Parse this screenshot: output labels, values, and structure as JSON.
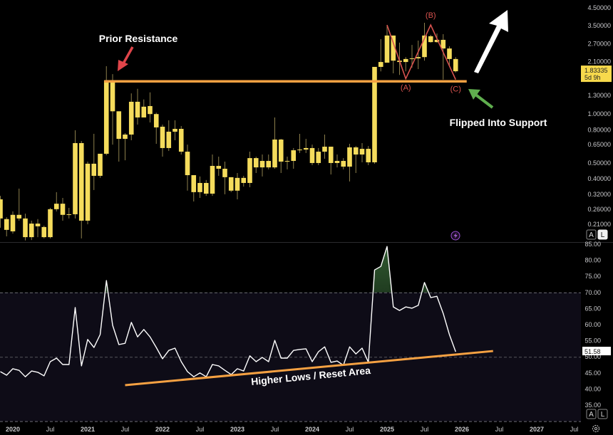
{
  "chart_data": [
    {
      "type": "candlestick",
      "interval": "1M",
      "y_scale": "log",
      "ylim": [
        0.165,
        4.6
      ],
      "candle_color": "#f5dc5c",
      "wick_color": "#8c7f4c",
      "y_ticks": [
        "4.50000",
        "3.50000",
        "2.70000",
        "2.10000",
        "1.30000",
        "1.00000",
        "0.80000",
        "0.65000",
        "0.50000",
        "0.40000",
        "0.32000",
        "0.26000",
        "0.21000"
      ],
      "last_price": {
        "value": "1.83335",
        "countdown": "5d 9h",
        "color": "#f7d94c"
      },
      "candles": [
        [
          "2019-11",
          0.299,
          0.314,
          0.2,
          0.228
        ],
        [
          "2019-12",
          0.226,
          0.232,
          0.177,
          0.194
        ],
        [
          "2020-01",
          0.19,
          0.252,
          0.184,
          0.24
        ],
        [
          "2020-02",
          0.24,
          0.348,
          0.221,
          0.228
        ],
        [
          "2020-03",
          0.228,
          0.244,
          0.167,
          0.175
        ],
        [
          "2020-04",
          0.175,
          0.221,
          0.168,
          0.212
        ],
        [
          "2020-05",
          0.212,
          0.226,
          0.175,
          0.204
        ],
        [
          "2020-06",
          0.202,
          0.206,
          0.172,
          0.175
        ],
        [
          "2020-07",
          0.175,
          0.265,
          0.172,
          0.26
        ],
        [
          "2020-08",
          0.26,
          0.331,
          0.252,
          0.281
        ],
        [
          "2020-09",
          0.281,
          0.305,
          0.221,
          0.24
        ],
        [
          "2020-10",
          0.24,
          0.265,
          0.228,
          0.242
        ],
        [
          "2020-11",
          0.242,
          0.795,
          0.228,
          0.663
        ],
        [
          "2020-12",
          0.663,
          0.683,
          0.172,
          0.221
        ],
        [
          "2021-01",
          0.221,
          0.51,
          0.21,
          0.495
        ],
        [
          "2021-02",
          0.495,
          0.756,
          0.341,
          0.417
        ],
        [
          "2021-03",
          0.417,
          0.57,
          0.405,
          0.57
        ],
        [
          "2021-04",
          0.57,
          1.97,
          0.558,
          1.61
        ],
        [
          "2021-05",
          1.61,
          1.76,
          0.649,
          1.04
        ],
        [
          "2021-06",
          1.04,
          1.04,
          0.51,
          0.704
        ],
        [
          "2021-07",
          0.704,
          0.763,
          0.52,
          0.748
        ],
        [
          "2021-08",
          0.748,
          1.34,
          0.69,
          1.19
        ],
        [
          "2021-09",
          1.19,
          1.43,
          0.861,
          0.953
        ],
        [
          "2021-10",
          0.953,
          1.23,
          0.953,
          1.11
        ],
        [
          "2021-11",
          1.12,
          1.36,
          0.888,
          1.0
        ],
        [
          "2021-12",
          1.0,
          1.02,
          0.656,
          0.828
        ],
        [
          "2022-01",
          0.836,
          0.861,
          0.547,
          0.618
        ],
        [
          "2022-02",
          0.618,
          0.915,
          0.593,
          0.779
        ],
        [
          "2022-03",
          0.779,
          0.915,
          0.69,
          0.811
        ],
        [
          "2022-04",
          0.811,
          0.844,
          0.564,
          0.587
        ],
        [
          "2022-05",
          0.587,
          0.649,
          0.338,
          0.421
        ],
        [
          "2022-06",
          0.421,
          0.421,
          0.29,
          0.331
        ],
        [
          "2022-07",
          0.331,
          0.413,
          0.305,
          0.377
        ],
        [
          "2022-08",
          0.377,
          0.393,
          0.314,
          0.324
        ],
        [
          "2022-09",
          0.324,
          0.564,
          0.314,
          0.48
        ],
        [
          "2022-10",
          0.48,
          0.547,
          0.417,
          0.461
        ],
        [
          "2022-11",
          0.461,
          0.51,
          0.321,
          0.409
        ],
        [
          "2022-12",
          0.409,
          0.409,
          0.331,
          0.338
        ],
        [
          "2023-01",
          0.338,
          0.434,
          0.299,
          0.405
        ],
        [
          "2023-02",
          0.405,
          0.417,
          0.358,
          0.377
        ],
        [
          "2023-03",
          0.377,
          0.587,
          0.355,
          0.536
        ],
        [
          "2023-04",
          0.536,
          0.547,
          0.434,
          0.47
        ],
        [
          "2023-05",
          0.47,
          0.564,
          0.413,
          0.515
        ],
        [
          "2023-06",
          0.515,
          0.564,
          0.457,
          0.47
        ],
        [
          "2023-07",
          0.47,
          0.953,
          0.461,
          0.697
        ],
        [
          "2023-08",
          0.697,
          0.704,
          0.434,
          0.51
        ],
        [
          "2023-09",
          0.51,
          0.547,
          0.457,
          0.515
        ],
        [
          "2023-10",
          0.515,
          0.618,
          0.461,
          0.599
        ],
        [
          "2023-11",
          0.599,
          0.756,
          0.576,
          0.605
        ],
        [
          "2023-12",
          0.605,
          0.704,
          0.576,
          0.618
        ],
        [
          "2024-01",
          0.618,
          0.649,
          0.485,
          0.5
        ],
        [
          "2024-02",
          0.5,
          0.618,
          0.485,
          0.587
        ],
        [
          "2024-03",
          0.587,
          0.748,
          0.531,
          0.63
        ],
        [
          "2024-04",
          0.63,
          0.63,
          0.425,
          0.5
        ],
        [
          "2024-05",
          0.5,
          0.564,
          0.47,
          0.515
        ],
        [
          "2024-06",
          0.515,
          0.536,
          0.457,
          0.475
        ],
        [
          "2024-07",
          0.475,
          0.656,
          0.385,
          0.624
        ],
        [
          "2024-08",
          0.624,
          0.636,
          0.434,
          0.564
        ],
        [
          "2024-09",
          0.564,
          0.663,
          0.505,
          0.611
        ],
        [
          "2024-10",
          0.611,
          0.636,
          0.485,
          0.505
        ],
        [
          "2024-11",
          0.505,
          1.95,
          0.495,
          1.95
        ],
        [
          "2024-12",
          1.95,
          2.89,
          1.83,
          2.09
        ],
        [
          "2025-01",
          2.07,
          3.53,
          2.07,
          3.04
        ],
        [
          "2025-02",
          3.04,
          3.04,
          1.78,
          2.13
        ],
        [
          "2025-03",
          2.13,
          2.75,
          1.74,
          2.09
        ],
        [
          "2025-04",
          2.09,
          2.24,
          1.83,
          2.18
        ],
        [
          "2025-05",
          2.18,
          2.66,
          1.93,
          2.2
        ],
        [
          "2025-06",
          2.2,
          2.83,
          1.89,
          2.24
        ],
        [
          "2025-07",
          2.24,
          3.64,
          2.13,
          3.04
        ],
        [
          "2025-08",
          3.01,
          3.07,
          2.75,
          2.77
        ],
        [
          "2025-09",
          2.77,
          3.13,
          2.75,
          2.86
        ],
        [
          "2025-10",
          2.86,
          3.1,
          1.63,
          2.53
        ],
        [
          "2025-11",
          2.53,
          2.61,
          1.99,
          2.18
        ],
        [
          "2025-12",
          2.18,
          2.24,
          1.8,
          1.83335
        ]
      ],
      "annotations": {
        "support_line": {
          "price": 1.59,
          "from": "2021-04",
          "to": "2026-02",
          "color": "#f5a142"
        },
        "prior_resistance_text": "Prior Resistance",
        "flipped_support_text": "Flipped Into Support",
        "abc_wave": {
          "color": "#d9534f",
          "points": [
            [
              "2025-01",
              3.53
            ],
            [
              "2025-04",
              1.65
            ],
            [
              "2025-08",
              3.53
            ],
            [
              "2025-12",
              1.63
            ]
          ],
          "labels": [
            "(A)",
            "(B)",
            "(C)"
          ]
        }
      }
    },
    {
      "type": "line",
      "indicator": "RSI",
      "ylim": [
        30,
        85
      ],
      "y_ticks": [
        "85.00",
        "80.00",
        "75.00",
        "70.00",
        "65.00",
        "60.00",
        "55.00",
        "50.00",
        "45.00",
        "40.00",
        "35.00"
      ],
      "bands": {
        "upper": 70,
        "middle": 50,
        "lower": 30
      },
      "line_color": "#ffffff",
      "last_value": "51.58",
      "start": "2019-11",
      "values": [
        45.4,
        44.3,
        46.3,
        45.8,
        43.8,
        45.6,
        45.2,
        44.1,
        48.5,
        49.6,
        47.6,
        47.6,
        65.3,
        47.2,
        55.4,
        52.9,
        56.9,
        73.7,
        59.8,
        53.8,
        54.2,
        60.7,
        56.2,
        58.5,
        56.2,
        52.9,
        49.4,
        52.0,
        52.7,
        48.5,
        45.4,
        43.8,
        45.0,
        43.8,
        47.6,
        47.2,
        45.8,
        44.5,
        46.3,
        45.6,
        50.3,
        48.5,
        49.8,
        48.5,
        55.1,
        49.6,
        49.6,
        52.0,
        52.3,
        52.5,
        48.5,
        51.6,
        53.1,
        48.3,
        48.7,
        47.4,
        53.1,
        50.9,
        52.7,
        48.3,
        77.0,
        78.1,
        84.3,
        65.5,
        64.4,
        65.5,
        65.1,
        66.0,
        73.1,
        68.4,
        68.8,
        63.5,
        56.9,
        51.58
      ],
      "trendline": {
        "points": [
          [
            "2021-07",
            41.2
          ],
          [
            "2026-06",
            51.8
          ]
        ],
        "color": "#f5a142"
      },
      "trendline_text": "Higher Lows / Reset Area"
    }
  ],
  "x_axis": [
    {
      "label": "2020",
      "date": "2020-01"
    },
    {
      "label": "Jul",
      "date": "2020-07"
    },
    {
      "label": "2021",
      "date": "2021-01"
    },
    {
      "label": "Jul",
      "date": "2021-07"
    },
    {
      "label": "2022",
      "date": "2022-01"
    },
    {
      "label": "Jul",
      "date": "2022-07"
    },
    {
      "label": "2023",
      "date": "2023-01"
    },
    {
      "label": "Jul",
      "date": "2023-07"
    },
    {
      "label": "2024",
      "date": "2024-01"
    },
    {
      "label": "Jul",
      "date": "2024-07"
    },
    {
      "label": "2025",
      "date": "2025-01"
    },
    {
      "label": "Jul",
      "date": "2025-07"
    },
    {
      "label": "2026",
      "date": "2026-01"
    },
    {
      "label": "Jul",
      "date": "2026-07"
    },
    {
      "label": "2027",
      "date": "2027-01"
    },
    {
      "label": "Jul",
      "date": "2027-07"
    }
  ],
  "controls": {
    "auto_label": "A",
    "log_label": "L"
  },
  "icons": {
    "alert": "lightning-icon",
    "settings": "gear-icon"
  }
}
